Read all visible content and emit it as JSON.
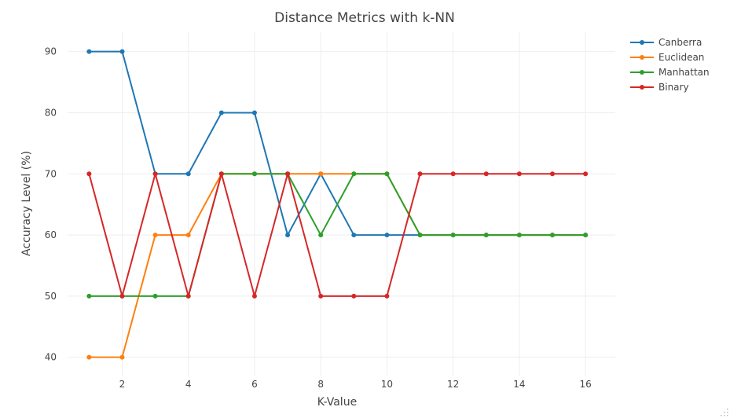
{
  "chart_data": {
    "type": "line",
    "title": "Distance Metrics with k-NN",
    "xlabel": "K-Value",
    "ylabel": "Accuracy Level (%)",
    "x": [
      1,
      2,
      3,
      4,
      5,
      6,
      7,
      8,
      9,
      10,
      11,
      12,
      13,
      14,
      15,
      16
    ],
    "x_ticks": [
      "2",
      "4",
      "6",
      "8",
      "10",
      "12",
      "14",
      "16"
    ],
    "y_ticks": [
      "40",
      "50",
      "60",
      "70",
      "80",
      "90"
    ],
    "xlim": [
      0.35,
      16.9
    ],
    "ylim": [
      37,
      93.3
    ],
    "grid": true,
    "legend_position": "top-right",
    "series": [
      {
        "name": "Canberra",
        "color": "#1f77b4",
        "values": [
          90,
          90,
          70,
          70,
          80,
          80,
          60,
          70,
          60,
          60,
          60,
          60,
          60,
          60,
          60,
          60
        ]
      },
      {
        "name": "Euclidean",
        "color": "#ff7f0e",
        "values": [
          40,
          40,
          60,
          60,
          70,
          70,
          70,
          70,
          70,
          70,
          60,
          60,
          60,
          60,
          60,
          60
        ]
      },
      {
        "name": "Manhattan",
        "color": "#2ca02c",
        "values": [
          50,
          50,
          50,
          50,
          70,
          70,
          70,
          60,
          70,
          70,
          60,
          60,
          60,
          60,
          60,
          60
        ]
      },
      {
        "name": "Binary",
        "color": "#d62728",
        "values": [
          70,
          50,
          70,
          50,
          70,
          50,
          70,
          50,
          50,
          50,
          70,
          70,
          70,
          70,
          70,
          70
        ]
      }
    ]
  }
}
